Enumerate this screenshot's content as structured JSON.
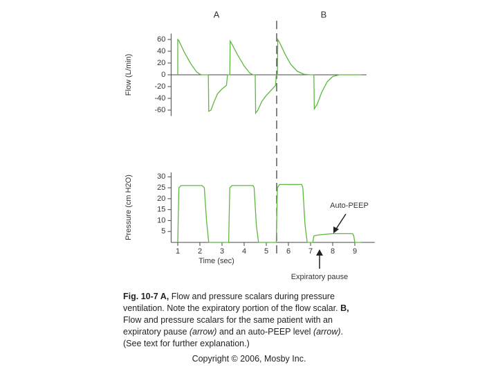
{
  "chart_data": [
    {
      "type": "line",
      "panel_labels": [
        "A",
        "B"
      ],
      "ylabel": "Flow (L/min)",
      "xlim": [
        0.7,
        9.9
      ],
      "ylim": [
        -70,
        70
      ],
      "yticks": [
        60,
        40,
        20,
        0,
        -20,
        -40,
        -60
      ],
      "x": [
        1.0,
        1.0,
        1.05,
        1.3,
        1.6,
        1.85,
        2.0,
        2.1,
        2.38,
        2.4,
        2.5,
        2.65,
        2.8,
        3.0,
        3.2,
        3.25,
        3.35,
        3.37,
        3.45,
        3.7,
        4.0,
        4.25,
        4.4,
        4.5,
        4.52,
        4.62,
        4.8,
        5.0,
        5.2,
        5.42,
        5.45,
        5.5,
        5.52,
        5.6,
        5.85,
        6.1,
        6.4,
        6.7,
        7.0,
        7.15,
        7.17,
        7.3,
        7.5,
        7.75,
        8.0,
        8.3,
        9.3
      ],
      "series": [
        {
          "name": "Flow",
          "color": "#5cb83c",
          "values": [
            0,
            60,
            58,
            38,
            18,
            5,
            1,
            0,
            0,
            -62,
            -60,
            -45,
            -32,
            -24,
            -18,
            0,
            0,
            57,
            52,
            34,
            15,
            3,
            0,
            0,
            -65,
            -60,
            -45,
            -35,
            -27,
            -18,
            0,
            0,
            60,
            55,
            35,
            18,
            6,
            1,
            0,
            0,
            -58,
            -50,
            -30,
            -12,
            -3,
            0,
            0
          ]
        }
      ]
    },
    {
      "type": "line",
      "ylabel": "Pressure (cm H2O)",
      "xlabel": "Time (sec)",
      "xlim": [
        0.7,
        9.9
      ],
      "ylim": [
        0,
        32
      ],
      "yticks": [
        30,
        25,
        20,
        15,
        10,
        5
      ],
      "xticks": [
        1,
        2,
        3,
        4,
        5,
        6,
        7,
        8,
        9
      ],
      "annotations": [
        "Auto-PEEP",
        "Expiratory pause"
      ],
      "x": [
        1.0,
        1.05,
        1.15,
        2.1,
        2.2,
        2.3,
        2.4,
        3.3,
        3.35,
        3.45,
        4.4,
        4.45,
        4.55,
        4.65,
        5.45,
        5.5,
        5.6,
        6.6,
        6.65,
        6.75,
        6.85,
        7.1,
        7.15,
        7.4,
        8.0,
        8.9,
        8.95,
        9.0,
        9.3
      ],
      "series": [
        {
          "name": "Pressure",
          "color": "#5cb83c",
          "values": [
            0,
            25,
            26,
            26,
            25,
            10,
            0,
            0,
            25,
            26,
            26,
            25,
            8,
            0,
            0,
            25,
            26.5,
            26.5,
            25,
            8,
            0,
            0,
            3,
            3.5,
            4,
            4,
            3,
            0,
            0
          ]
        }
      ]
    }
  ],
  "caption": [
    [
      "Fig. 10-7 A,",
      " Flow and pressure scalars during pressure"
    ],
    [
      "ventilation. Note the expiratory portion of the flow scalar. ",
      "B,"
    ],
    [
      "Flow and pressure scalars for the same patient with an"
    ],
    [
      "expiratory pause ",
      "(arrow)",
      " and an auto-PEEP level ",
      "(arrow)",
      "."
    ],
    [
      "(See text for further explanation.)"
    ]
  ],
  "copyright": "Copyright © 2006, Mosby Inc."
}
